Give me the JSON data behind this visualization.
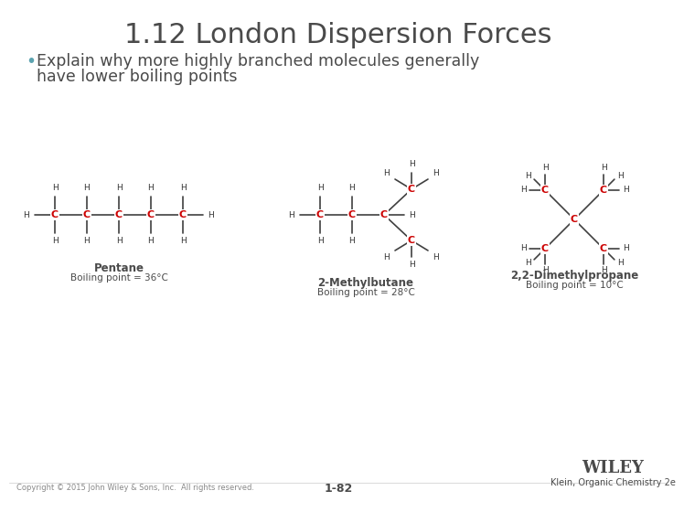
{
  "title": "1.12 London Dispersion Forces",
  "background_color": "#ffffff",
  "title_color": "#4a4a4a",
  "bullet_color": "#4a4a4a",
  "bullet_dot_color": "#5ba3b0",
  "carbon_color": "#cc0000",
  "hydrogen_color": "#333333",
  "bond_color": "#404040",
  "molecule1_name": "Pentane",
  "molecule1_bp": "Boiling point = 36°C",
  "molecule2_name": "2-Methylbutane",
  "molecule2_bp": "Boiling point = 28°C",
  "molecule3_name": "2,2-Dimethylpropane",
  "molecule3_bp": "Boiling point = 10°C",
  "footer_copyright": "Copyright © 2015 John Wiley & Sons, Inc.  All rights reserved.",
  "footer_page": "1-82",
  "footer_publisher": "WILEY",
  "footer_book": "Klein, Organic Chemistry 2e",
  "title_fontsize": 22,
  "bullet_fontsize": 12.5,
  "mol_name_fontsize": 8.5,
  "mol_bp_fontsize": 7.5,
  "footer_fontsize": 6,
  "page_fontsize": 9,
  "wiley_fontsize": 13,
  "carbon_fontsize": 8,
  "hydrogen_fontsize": 6.5
}
